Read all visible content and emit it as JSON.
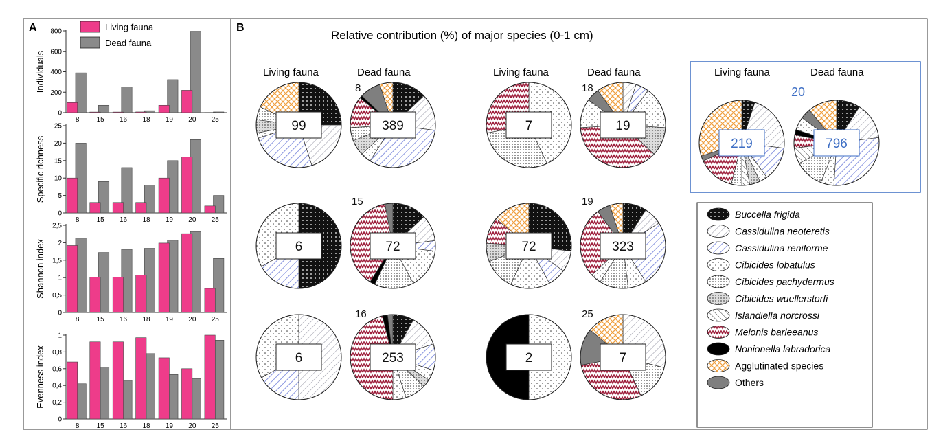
{
  "panel_a_label": "A",
  "panel_b_label": "B",
  "legend_a": [
    "Living fauna",
    "Dead fauna"
  ],
  "colors": {
    "living": "#ee3c8a",
    "dead": "#8a8a8a",
    "box_accent": "#3d6ec4"
  },
  "panel_b": {
    "title": "Relative contribution (%) of major species (0-1 cm)",
    "col_living": "Living fauna",
    "col_dead": "Dead fauna"
  },
  "chart_data": [
    {
      "type": "bar",
      "categories": [
        "8",
        "15",
        "16",
        "18",
        "19",
        "20",
        "25"
      ],
      "ylabel": "Individuals",
      "ylim": [
        0,
        800
      ],
      "yticks": [
        0,
        200,
        400,
        600,
        800
      ],
      "tick_labels": [
        "0",
        "200",
        "400",
        "600",
        "800"
      ],
      "series": [
        {
          "name": "Living fauna",
          "values": [
            99,
            6,
            6,
            7,
            72,
            219,
            2
          ]
        },
        {
          "name": "Dead fauna",
          "values": [
            389,
            72,
            253,
            19,
            323,
            796,
            7
          ]
        }
      ]
    },
    {
      "type": "bar",
      "categories": [
        "8",
        "15",
        "16",
        "18",
        "19",
        "20",
        "25"
      ],
      "ylabel": "Specific richness",
      "ylim": [
        0,
        25
      ],
      "yticks": [
        0,
        5,
        10,
        15,
        20,
        25
      ],
      "tick_labels": [
        "0",
        "5",
        "10",
        "15",
        "20",
        "25"
      ],
      "series": [
        {
          "name": "Living fauna",
          "values": [
            10,
            3,
            3,
            3,
            10,
            16,
            2
          ]
        },
        {
          "name": "Dead fauna",
          "values": [
            20,
            9,
            13,
            8,
            15,
            21,
            5
          ]
        }
      ]
    },
    {
      "type": "bar",
      "categories": [
        "8",
        "15",
        "16",
        "18",
        "19",
        "20",
        "25"
      ],
      "ylabel": "Shannon index",
      "ylim": [
        0,
        2.5
      ],
      "yticks": [
        0,
        0.5,
        1,
        1.5,
        2,
        2.5
      ],
      "tick_labels": [
        "0",
        "0,5",
        "1",
        "1,5",
        "2",
        "2,5"
      ],
      "series": [
        {
          "name": "Living fauna",
          "values": [
            1.92,
            1.01,
            1.01,
            1.07,
            1.99,
            2.26,
            0.69
          ]
        },
        {
          "name": "Dead fauna",
          "values": [
            2.13,
            1.72,
            1.81,
            1.84,
            2.07,
            2.32,
            1.55
          ]
        }
      ]
    },
    {
      "type": "bar",
      "categories": [
        "8",
        "15",
        "16",
        "18",
        "19",
        "20",
        "25"
      ],
      "ylabel": "Evenness index",
      "ylim": [
        0,
        1
      ],
      "yticks": [
        0,
        0.2,
        0.4,
        0.6,
        0.8,
        1
      ],
      "tick_labels": [
        "0",
        "0,2",
        "0,4",
        "0,6",
        "0,8",
        "1"
      ],
      "series": [
        {
          "name": "Living fauna",
          "values": [
            0.68,
            0.92,
            0.92,
            0.97,
            0.73,
            0.6,
            1.0
          ]
        },
        {
          "name": "Dead fauna",
          "values": [
            0.42,
            0.62,
            0.46,
            0.78,
            0.53,
            0.48,
            0.94
          ]
        }
      ]
    },
    {
      "type": "pie",
      "species": [
        {
          "name": "Buccella frigida",
          "pattern": "dots-black"
        },
        {
          "name": "Cassidulina neoteretis",
          "pattern": "hatch-gray"
        },
        {
          "name": "Cassidulina reniforme",
          "pattern": "hatch-blue"
        },
        {
          "name": "Cibicides lobatulus",
          "pattern": "dots-sparse"
        },
        {
          "name": "Cibicides pachydermus",
          "pattern": "dots-dense"
        },
        {
          "name": "Cibicides wuellerstorfi",
          "pattern": "dots-grid"
        },
        {
          "name": "Islandiella norcrossi",
          "pattern": "hatch-back"
        },
        {
          "name": "Melonis barleeanus",
          "pattern": "zigzag-red"
        },
        {
          "name": "Nonionella labradorica",
          "pattern": "solid-black"
        },
        {
          "name": "Agglutinated species",
          "pattern": "cross-orange"
        },
        {
          "name": "Others",
          "pattern": "solid-gray"
        }
      ],
      "italic_species": [
        true,
        true,
        true,
        true,
        true,
        true,
        true,
        true,
        true,
        false,
        false
      ],
      "stations": [
        {
          "station": "8",
          "living_total": "99",
          "dead_total": "389",
          "living": [
            {
              "species": "Buccella frigida",
              "value": 25
            },
            {
              "species": "Cassidulina neoteretis",
              "value": 20
            },
            {
              "species": "Cassidulina reniforme",
              "value": 25
            },
            {
              "species": "Cibicides lobatulus",
              "value": 2
            },
            {
              "species": "Cibicides wuellerstorfi",
              "value": 5
            },
            {
              "species": "Cibicides pachydermus",
              "value": 5
            },
            {
              "species": "Agglutinated species",
              "value": 18
            }
          ],
          "dead": [
            {
              "species": "Buccella frigida",
              "value": 13
            },
            {
              "species": "Cassidulina neoteretis",
              "value": 14
            },
            {
              "species": "Cassidulina reniforme",
              "value": 32
            },
            {
              "species": "Cibicides lobatulus",
              "value": 4
            },
            {
              "species": "Cibicides wuellerstorfi",
              "value": 6
            },
            {
              "species": "Cibicides pachydermus",
              "value": 5
            },
            {
              "species": "Melonis barleeanus",
              "value": 12
            },
            {
              "species": "Nonionella labradorica",
              "value": 1
            },
            {
              "species": "Others",
              "value": 8
            },
            {
              "species": "Agglutinated species",
              "value": 5
            }
          ]
        },
        {
          "station": "15",
          "living_total": "6",
          "dead_total": "72",
          "living": [
            {
              "species": "Buccella frigida",
              "value": 50
            },
            {
              "species": "Cassidulina reniforme",
              "value": 17
            },
            {
              "species": "Cibicides lobatulus",
              "value": 33
            }
          ],
          "dead": [
            {
              "species": "Buccella frigida",
              "value": 13
            },
            {
              "species": "Cassidulina neoteretis",
              "value": 10
            },
            {
              "species": "Cassidulina reniforme",
              "value": 4
            },
            {
              "species": "Cibicides lobatulus",
              "value": 15
            },
            {
              "species": "Cibicides pachydermus",
              "value": 15
            },
            {
              "species": "Nonionella labradorica",
              "value": 2
            },
            {
              "species": "Melonis barleeanus",
              "value": 38
            },
            {
              "species": "Others",
              "value": 3
            }
          ]
        },
        {
          "station": "16",
          "living_total": "6",
          "dead_total": "253",
          "living": [
            {
              "species": "Cassidulina neoteretis",
              "value": 50
            },
            {
              "species": "Cassidulina reniforme",
              "value": 17
            },
            {
              "species": "Cibicides lobatulus",
              "value": 33
            }
          ],
          "dead": [
            {
              "species": "Buccella frigida",
              "value": 8
            },
            {
              "species": "Cassidulina neoteretis",
              "value": 12
            },
            {
              "species": "Cassidulina reniforme",
              "value": 10
            },
            {
              "species": "Cibicides lobatulus",
              "value": 4
            },
            {
              "species": "Cibicides wuellerstorfi",
              "value": 3
            },
            {
              "species": "Cibicides pachydermus",
              "value": 8
            },
            {
              "species": "Cibicides lobatulus",
              "value": 5
            },
            {
              "species": "Melonis barleeanus",
              "value": 46
            },
            {
              "species": "Nonionella labradorica",
              "value": 2
            },
            {
              "species": "Others",
              "value": 2
            }
          ]
        },
        {
          "station": "18",
          "living_total": "7",
          "dead_total": "19",
          "living": [
            {
              "species": "Cibicides lobatulus",
              "value": 43
            },
            {
              "species": "Cibicides pachydermus",
              "value": 29
            },
            {
              "species": "Melonis barleeanus",
              "value": 28
            }
          ],
          "dead": [
            {
              "species": "Cassidulina neoteretis",
              "value": 5
            },
            {
              "species": "Cassidulina reniforme",
              "value": 5
            },
            {
              "species": "Cibicides lobatulus",
              "value": 16
            },
            {
              "species": "Cibicides wuellerstorfi",
              "value": 11
            },
            {
              "species": "Melonis barleeanus",
              "value": 37
            },
            {
              "species": "Cibicides lobatulus",
              "value": 11
            },
            {
              "species": "Others",
              "value": 5
            },
            {
              "species": "Agglutinated species",
              "value": 10
            }
          ]
        },
        {
          "station": "19",
          "living_total": "72",
          "dead_total": "323",
          "living": [
            {
              "species": "Buccella frigida",
              "value": 27
            },
            {
              "species": "Cassidulina neoteretis",
              "value": 8
            },
            {
              "species": "Cassidulina reniforme",
              "value": 7
            },
            {
              "species": "Cibicides lobatulus",
              "value": 15
            },
            {
              "species": "Cibicides pachydermus",
              "value": 12
            },
            {
              "species": "Cibicides wuellerstorfi",
              "value": 7
            },
            {
              "species": "Melonis barleeanus",
              "value": 10
            },
            {
              "species": "Agglutinated species",
              "value": 14
            }
          ],
          "dead": [
            {
              "species": "Buccella frigida",
              "value": 9
            },
            {
              "species": "Cassidulina neoteretis",
              "value": 7
            },
            {
              "species": "Cassidulina reniforme",
              "value": 25
            },
            {
              "species": "Cibicides lobatulus",
              "value": 7
            },
            {
              "species": "Cibicides pachydermus",
              "value": 11
            },
            {
              "species": "Cibicides lobatulus",
              "value": 4
            },
            {
              "species": "Melonis barleeanus",
              "value": 27
            },
            {
              "species": "Others",
              "value": 5
            },
            {
              "species": "Agglutinated species",
              "value": 5
            }
          ]
        },
        {
          "station": "20",
          "living_total": "219",
          "dead_total": "796",
          "living": [
            {
              "species": "Buccella frigida",
              "value": 5
            },
            {
              "species": "Cassidulina neoteretis",
              "value": 22
            },
            {
              "species": "Cassidulina reniforme",
              "value": 13
            },
            {
              "species": "Cibicides lobatulus",
              "value": 3
            },
            {
              "species": "Cibicides wuellerstorfi",
              "value": 4
            },
            {
              "species": "Islandiella norcrossi",
              "value": 3
            },
            {
              "species": "Cibicides pachydermus",
              "value": 4
            },
            {
              "species": "Melonis barleeanus",
              "value": 14
            },
            {
              "species": "Others",
              "value": 2
            },
            {
              "species": "Agglutinated species",
              "value": 30
            }
          ],
          "dead": [
            {
              "species": "Buccella frigida",
              "value": 9
            },
            {
              "species": "Cassidulina neoteretis",
              "value": 14
            },
            {
              "species": "Cassidulina reniforme",
              "value": 28
            },
            {
              "species": "Cibicides lobatulus",
              "value": 5
            },
            {
              "species": "Cibicides pachydermus",
              "value": 11
            },
            {
              "species": "Islandiella norcrossi",
              "value": 6
            },
            {
              "species": "Melonis barleeanus",
              "value": 5
            },
            {
              "species": "Nonionella labradorica",
              "value": 2
            },
            {
              "species": "Cibicides lobatulus",
              "value": 5
            },
            {
              "species": "Others",
              "value": 4
            },
            {
              "species": "Agglutinated species",
              "value": 11
            }
          ]
        },
        {
          "station": "25",
          "living_total": "2",
          "dead_total": "7",
          "living": [
            {
              "species": "Cibicides lobatulus",
              "value": 50
            },
            {
              "species": "Nonionella labradorica",
              "value": 50
            }
          ],
          "dead": [
            {
              "species": "Cassidulina neoteretis",
              "value": 29
            },
            {
              "species": "Cibicides pachydermus",
              "value": 14
            },
            {
              "species": "Melonis barleeanus",
              "value": 29
            },
            {
              "species": "Others",
              "value": 14
            },
            {
              "species": "Agglutinated species",
              "value": 14
            }
          ]
        }
      ]
    }
  ]
}
